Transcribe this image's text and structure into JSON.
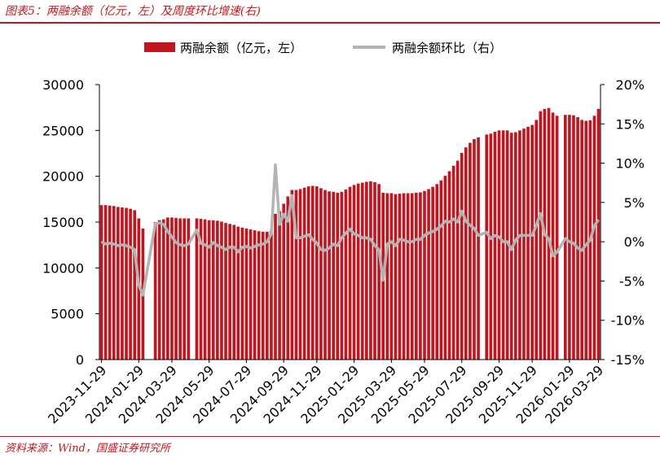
{
  "header": {
    "title": "图表5：两融余额（亿元，左）及周度环比增速(右)"
  },
  "footer": {
    "source": "资料来源：Wind，国盛证券研究所"
  },
  "colors": {
    "bar": "#c0161f",
    "line": "#b4b4b4",
    "accent": "#c0161f"
  },
  "chart_data": {
    "type": "bar",
    "title": "",
    "legend_position": "top",
    "grid": false,
    "legend": {
      "bar_label": "两融余额（亿元，左）",
      "line_label": "两融余额环比（右）"
    },
    "y_left": {
      "range": [
        0,
        30000
      ],
      "ticks": [
        "0",
        "5000",
        "10000",
        "15000",
        "20000",
        "25000",
        "30000"
      ]
    },
    "y_right": {
      "range": [
        -15,
        20
      ],
      "ticks": [
        "-15%",
        "-10%",
        "-5%",
        "0%",
        "5%",
        "10%",
        "15%",
        "20%"
      ]
    },
    "x_tick_labels": [
      "2023-11-29",
      "2024-01-29",
      "2024-03-29",
      "2024-05-29",
      "2024-07-29",
      "2024-09-29",
      "2024-11-29",
      "2025-01-29",
      "2025-03-29",
      "2025-05-29",
      "2025-07-29",
      "2025-09-29",
      "2025-11-29",
      "2026-01-29",
      "2026-03-29"
    ],
    "series": [
      {
        "name": "两融余额（亿元，左）",
        "type": "bar",
        "axis": "left",
        "values": [
          16850,
          16850,
          16800,
          16750,
          16650,
          16600,
          16550,
          16450,
          16300,
          15400,
          14300,
          null,
          null,
          15000,
          15200,
          15300,
          15500,
          15500,
          15450,
          15400,
          15400,
          15400,
          null,
          15400,
          15350,
          15300,
          15200,
          15200,
          15150,
          15050,
          14900,
          14800,
          14700,
          14500,
          14400,
          14300,
          14200,
          14100,
          14000,
          13950,
          13950,
          14100,
          15900,
          16200,
          17000,
          17800,
          18500,
          18500,
          18600,
          18750,
          18900,
          18950,
          18900,
          18700,
          18500,
          18350,
          18300,
          18200,
          18300,
          18550,
          18850,
          19050,
          19200,
          19300,
          19400,
          19450,
          19350,
          19150,
          18200,
          18150,
          18150,
          18050,
          18100,
          18150,
          18150,
          18150,
          18200,
          18250,
          18400,
          18600,
          18850,
          19150,
          19550,
          20050,
          20550,
          21150,
          21700,
          22550,
          23150,
          23650,
          24050,
          24250,
          null,
          24550,
          24650,
          24850,
          25000,
          25000,
          25000,
          24750,
          24800,
          25000,
          25200,
          25400,
          25600,
          26150,
          27100,
          27350,
          27450,
          26950,
          26600,
          null,
          26700,
          26700,
          26650,
          26450,
          26150,
          26050,
          26100,
          26600,
          27350
        ]
      },
      {
        "name": "两融余额环比（右）",
        "type": "line",
        "axis": "right",
        "values": [
          0.0,
          -0.3,
          -0.2,
          -0.3,
          -0.5,
          -0.4,
          -0.5,
          -0.7,
          -1.0,
          -5.5,
          -6.8,
          null,
          null,
          2.3,
          2.4,
          2.2,
          1.3,
          0.6,
          -0.1,
          -0.4,
          -0.5,
          -0.3,
          null,
          1.5,
          -0.2,
          -0.4,
          -0.7,
          -0.1,
          -0.5,
          -0.7,
          -1.0,
          -0.7,
          -0.7,
          -1.3,
          -0.7,
          -0.6,
          -0.8,
          -0.6,
          -0.4,
          -0.3,
          0.0,
          1.0,
          9.8,
          2.2,
          3.5,
          2.6,
          5.9,
          0.5,
          0.5,
          0.7,
          0.9,
          0.3,
          -0.2,
          -1.0,
          -1.1,
          -0.8,
          -0.3,
          -0.5,
          0.5,
          1.1,
          1.6,
          1.0,
          0.8,
          0.5,
          0.5,
          0.3,
          -0.5,
          -1.0,
          -4.9,
          -0.3,
          0.0,
          -0.5,
          0.3,
          0.2,
          0.0,
          0.0,
          0.3,
          0.3,
          0.8,
          1.1,
          1.3,
          1.6,
          2.0,
          2.6,
          2.5,
          2.9,
          2.5,
          3.9,
          2.6,
          2.1,
          1.7,
          0.8,
          null,
          1.2,
          0.4,
          0.8,
          0.6,
          0.0,
          0.0,
          -1.0,
          0.2,
          0.8,
          0.8,
          0.8,
          0.8,
          2.1,
          3.6,
          0.9,
          0.4,
          -1.8,
          -1.3,
          null,
          0.4,
          0.0,
          -0.2,
          -0.8,
          -1.1,
          -0.4,
          0.2,
          2.0,
          2.8
        ]
      }
    ]
  }
}
